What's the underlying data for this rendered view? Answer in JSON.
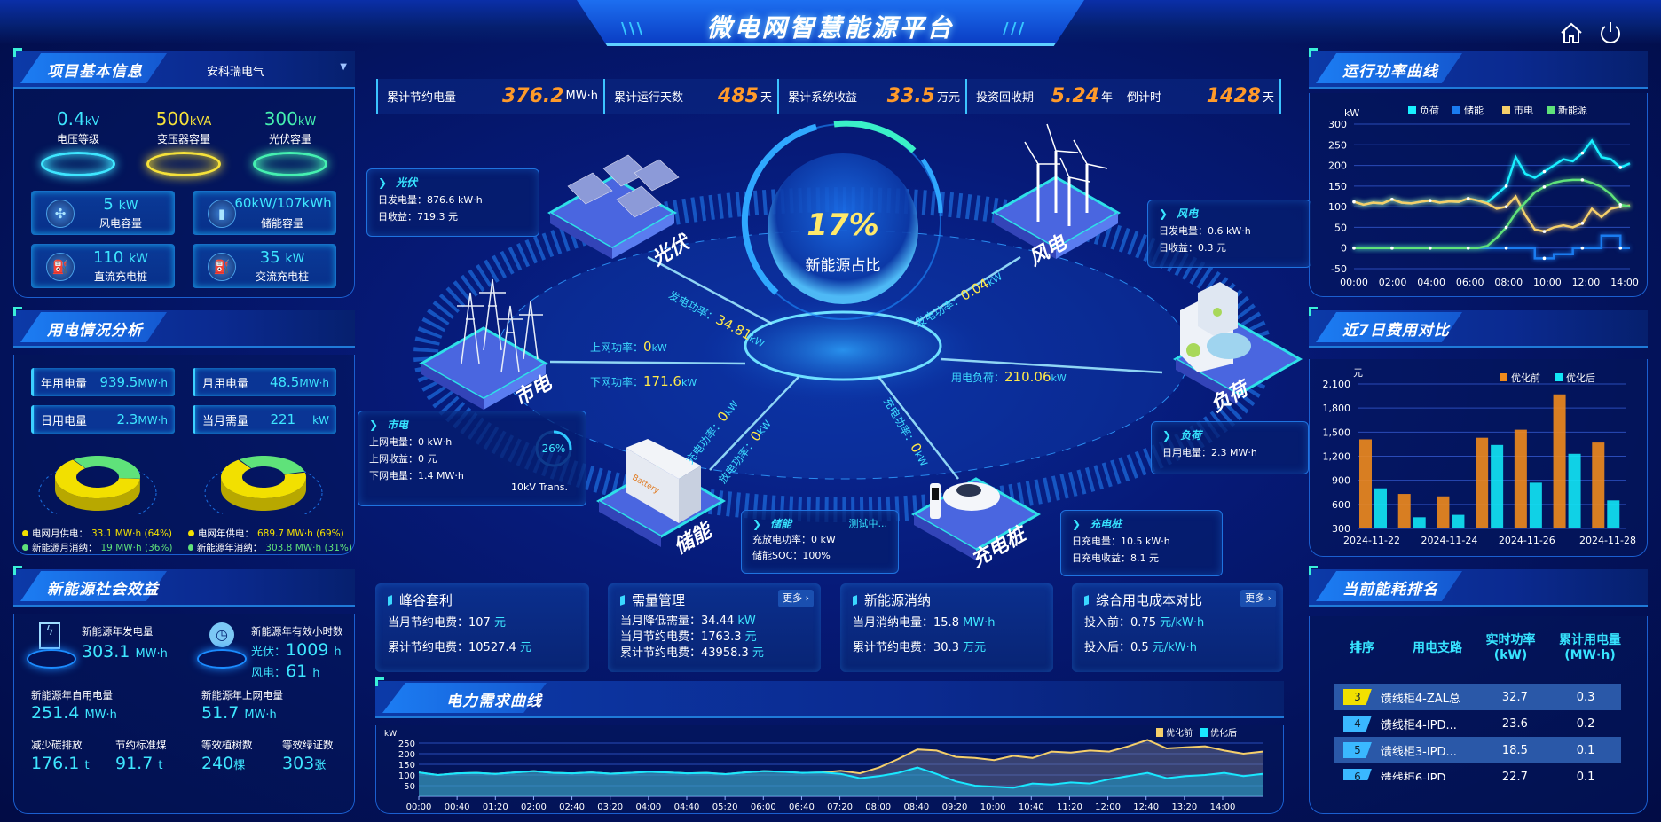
{
  "header": {
    "title": "微电网智慧能源平台",
    "icons": [
      "home-icon",
      "power-icon"
    ]
  },
  "stats": [
    {
      "label": "累计节约电量",
      "value": "376.2",
      "unit": "MW·h"
    },
    {
      "label": "累计运行天数",
      "value": "485",
      "unit": "天"
    },
    {
      "label": "累计系统收益",
      "value": "33.5",
      "unit": "万元"
    },
    {
      "label": "投资回收期",
      "value": "5.24",
      "unit": "年"
    },
    {
      "label": "倒计时",
      "value": "1428",
      "unit": "天"
    }
  ],
  "project": {
    "title": "项目基本信息",
    "company": "安科瑞电气",
    "cones": [
      {
        "value": "0.4",
        "unit": "kV",
        "label": "电压等级",
        "color": "#3ee6ff"
      },
      {
        "value": "500",
        "unit": "kVA",
        "label": "变压器容量",
        "color": "#f5e13a"
      },
      {
        "value": "300",
        "unit": "kW",
        "label": "光伏容量",
        "color": "#45f0b0"
      }
    ],
    "cards": [
      {
        "value": "5",
        "unit": "kW",
        "label": "风电容量",
        "icon": "wind-turbine-icon"
      },
      {
        "value": "60kW/107kWh",
        "unit": "",
        "label": "储能容量",
        "icon": "battery-icon"
      },
      {
        "value": "110",
        "unit": "kW",
        "label": "直流充电桩",
        "icon": "charger-icon"
      },
      {
        "value": "35",
        "unit": "kW",
        "label": "交流充电桩",
        "icon": "charger-icon"
      }
    ]
  },
  "usage": {
    "title": "用电情况分析",
    "boxes": [
      {
        "label": "年用电量",
        "value": "939.5",
        "unit": "MW·h"
      },
      {
        "label": "月用电量",
        "value": "48.5",
        "unit": "MW·h"
      },
      {
        "label": "日用电量",
        "value": "2.3",
        "unit": "MW·h"
      },
      {
        "label": "当月需量",
        "value": "221",
        "unit": "kW"
      }
    ],
    "donuts": [
      {
        "grid_pct": 64,
        "new_pct": 36,
        "grid_label": "电网月供电：",
        "grid_value": "33.1 MW·h (64%)",
        "new_label": "新能源月消纳：",
        "new_value": "19 MW·h (36%)"
      },
      {
        "grid_pct": 69,
        "new_pct": 31,
        "grid_label": "电网年供电：",
        "grid_value": "689.7 MW·h (69%)",
        "new_label": "新能源年消纳：",
        "new_value": "303.8 MW·h (31%)"
      }
    ],
    "colors": {
      "grid": "#f2e000",
      "new": "#5fe27a"
    }
  },
  "social": {
    "title": "新能源社会效益",
    "annual_gen_label": "新能源年发电量",
    "annual_gen_value": "303.1",
    "annual_gen_unit": "MW·h",
    "hours_label": "新能源年有效小时数",
    "pv_label": "光伏：",
    "pv_value": "1009",
    "pv_unit": "h",
    "wind_label": "风电：",
    "wind_value": "61",
    "wind_unit": "h",
    "self_label": "新能源年自用电量",
    "self_value": "251.4",
    "self_unit": "MW·h",
    "grid_label": "新能源年上网电量",
    "grid_value": "51.7",
    "grid_unit": "MW·h",
    "carbon_label": "减少碳排放",
    "carbon_value": "176.1",
    "carbon_unit": "t",
    "coal_label": "节约标准煤",
    "coal_value": "91.7",
    "coal_unit": "t",
    "tree_label": "等效植树数",
    "tree_value": "240",
    "tree_unit": "棵",
    "cert_label": "等效绿证数",
    "cert_value": "303",
    "cert_unit": "张"
  },
  "center": {
    "ratio": "17%",
    "ratio_label": "新能源占比",
    "nodes": {
      "pv": "光伏",
      "wind": "风电",
      "grid": "市电",
      "load": "负荷",
      "storage": "储能",
      "charger": "充电桩"
    },
    "flows": {
      "pv": {
        "label": "发电功率：",
        "value": "34.81",
        "unit": "kW"
      },
      "wind": {
        "label": "发电功率：",
        "value": "0.04",
        "unit": "kW"
      },
      "grid_up": {
        "label": "上网功率：",
        "value": "0",
        "unit": "kW"
      },
      "grid_down": {
        "label": "下网功率：",
        "value": "171.6",
        "unit": "kW"
      },
      "load": {
        "label": "用电负荷：",
        "value": "210.06",
        "unit": "kW"
      },
      "st_charge": {
        "label": "充电功率：",
        "value": "0",
        "unit": "kW"
      },
      "st_discharge": {
        "label": "放电功率：",
        "value": "0",
        "unit": "kW"
      },
      "ev_charge": {
        "label": "充电功率：",
        "value": "0",
        "unit": "kW"
      }
    },
    "boxes": {
      "pv": {
        "title": "光伏",
        "lines": [
          "日发电量：876.6 kW·h",
          "日收益：719.3 元"
        ]
      },
      "wind": {
        "title": "风电",
        "lines": [
          "日发电量：0.6 kW·h",
          "日收益：0.3 元"
        ]
      },
      "grid": {
        "title": "市电",
        "lines": [
          "上网电量：0 kW·h",
          "上网收益：0 元",
          "下网电量：1.4 MW·h"
        ],
        "gauge": "26%",
        "gauge_pct": 26,
        "gauge_label": "10kV Trans."
      },
      "load": {
        "title": "负荷",
        "lines": [
          "日用电量：2.3 MW·h"
        ]
      },
      "storage": {
        "title": "储能",
        "status": "测试中...",
        "lines": [
          "充放电功率：0 kW",
          "储能SOC：100%"
        ]
      },
      "charger": {
        "title": "充电桩",
        "lines": [
          "日充电量：10.5 kW·h",
          "日充电收益：8.1 元"
        ]
      }
    },
    "battery_text": "Battery"
  },
  "cards": [
    {
      "title": "峰谷套利",
      "rows": [
        {
          "label": "当月节约电费：",
          "value": "107",
          "unit": "元"
        },
        {
          "label": "累计节约电费：",
          "value": "10527.4",
          "unit": "元"
        }
      ]
    },
    {
      "title": "需量管理",
      "more": "更多",
      "rows": [
        {
          "label": "当月降低需量：",
          "value": "34.44",
          "unit": "kW"
        },
        {
          "label": "当月节约电费：",
          "value": "1763.3",
          "unit": "元"
        },
        {
          "label": "累计节约电费：",
          "value": "43958.3",
          "unit": "元"
        }
      ]
    },
    {
      "title": "新能源消纳",
      "rows": [
        {
          "label": "当月消纳电量：",
          "value": "15.8",
          "unit": "MW·h"
        },
        {
          "label": "累计节约电费：",
          "value": "30.3",
          "unit": "万元"
        }
      ]
    },
    {
      "title": "综合用电成本对比",
      "more": "更多",
      "rows": [
        {
          "label": "投入前：",
          "value": "0.75",
          "unit": "元/kW·h"
        },
        {
          "label": "投入后：",
          "value": "0.5",
          "unit": "元/kW·h"
        }
      ]
    }
  ],
  "ranking": {
    "title": "当前能耗排名",
    "headers": [
      "排序",
      "用电支路",
      "实时功率\n(kW)",
      "累计用电量\n(MW·h)"
    ],
    "rows": [
      {
        "rank": "3",
        "name": "馈线柜4-ZAL总",
        "power": "32.7",
        "energy": "0.3",
        "color": "#f2e000"
      },
      {
        "rank": "4",
        "name": "馈线柜4-IPD...",
        "power": "23.6",
        "energy": "0.2",
        "color": "#3ab8ff"
      },
      {
        "rank": "5",
        "name": "馈线柜3-IPD...",
        "power": "18.5",
        "energy": "0.1",
        "color": "#3ab8ff"
      },
      {
        "rank": "6",
        "name": "馈线柜6-IPD",
        "power": "22.7",
        "energy": "0.1",
        "color": "#3ab8ff"
      }
    ]
  },
  "chart_data": [
    {
      "id": "power",
      "title": "运行功率曲线",
      "type": "line",
      "ylabel": "kW",
      "ylim": [
        -50,
        300
      ],
      "yticks": [
        -50,
        0,
        50,
        100,
        150,
        200,
        250,
        300
      ],
      "xticks": [
        "00:00",
        "02:00",
        "04:00",
        "06:00",
        "08:00",
        "10:00",
        "12:00",
        "14:00"
      ],
      "legend": "top",
      "grid": true,
      "x": [
        "00:00",
        "00:30",
        "01:00",
        "01:30",
        "02:00",
        "02:30",
        "03:00",
        "03:30",
        "04:00",
        "04:30",
        "05:00",
        "05:30",
        "06:00",
        "06:30",
        "07:00",
        "07:30",
        "08:00",
        "08:30",
        "09:00",
        "09:30",
        "10:00",
        "10:30",
        "11:00",
        "11:30",
        "12:00",
        "12:30",
        "13:00",
        "13:30",
        "14:00",
        "14:30"
      ],
      "series": [
        {
          "name": "负荷",
          "color": "#19f0ff",
          "values": [
            112,
            105,
            110,
            108,
            118,
            110,
            108,
            112,
            115,
            110,
            113,
            112,
            120,
            115,
            110,
            130,
            150,
            220,
            180,
            170,
            185,
            200,
            215,
            210,
            230,
            260,
            220,
            215,
            195,
            205
          ]
        },
        {
          "name": "储能",
          "color": "#1a7cf0",
          "values": [
            0,
            0,
            0,
            0,
            0,
            0,
            0,
            0,
            0,
            0,
            0,
            0,
            0,
            0,
            0,
            0,
            0,
            0,
            0,
            -25,
            -25,
            -15,
            -15,
            0,
            0,
            0,
            30,
            30,
            0,
            0
          ]
        },
        {
          "name": "市电",
          "color": "#f5cf6a",
          "values": [
            112,
            105,
            110,
            108,
            118,
            110,
            108,
            112,
            115,
            110,
            113,
            112,
            120,
            115,
            108,
            95,
            100,
            125,
            80,
            45,
            40,
            50,
            55,
            50,
            60,
            95,
            75,
            95,
            100,
            103
          ]
        },
        {
          "name": "新能源",
          "color": "#5fe27a",
          "values": [
            0,
            0,
            0,
            0,
            0,
            0,
            0,
            0,
            0,
            0,
            0,
            0,
            0,
            0,
            5,
            25,
            50,
            85,
            110,
            135,
            148,
            158,
            163,
            165,
            165,
            158,
            148,
            130,
            105,
            100
          ]
        }
      ]
    },
    {
      "id": "cost",
      "title": "近7日费用对比",
      "type": "bar",
      "ylabel": "元",
      "ylim": [
        300,
        2100
      ],
      "yticks": [
        300,
        600,
        900,
        1200,
        1500,
        1800,
        2100
      ],
      "legend": "top-right",
      "grid": true,
      "categories": [
        "2024-11-22",
        "2024-11-23",
        "2024-11-24",
        "2024-11-25",
        "2024-11-26",
        "2024-11-27",
        "2024-11-28"
      ],
      "xticks": [
        "2024-11-22",
        "2024-11-24",
        "2024-11-26",
        "2024-11-28"
      ],
      "series": [
        {
          "name": "优化前",
          "color": "#f08a1c",
          "values": [
            1410,
            730,
            700,
            1430,
            1530,
            1970,
            1370
          ]
        },
        {
          "name": "优化后",
          "color": "#12e6f5",
          "values": [
            800,
            440,
            470,
            1340,
            870,
            1230,
            650
          ]
        }
      ]
    },
    {
      "id": "demand",
      "title": "电力需求曲线",
      "type": "area",
      "ylabel": "kW",
      "ylim": [
        0,
        300
      ],
      "yticks": [
        50,
        100,
        150,
        200,
        250
      ],
      "legend": "top-right",
      "grid": true,
      "xticks": [
        "00:00",
        "00:40",
        "01:20",
        "02:00",
        "02:40",
        "03:20",
        "04:00",
        "04:40",
        "05:20",
        "06:00",
        "06:40",
        "07:20",
        "08:00",
        "08:40",
        "09:20",
        "10:00",
        "10:40",
        "11:20",
        "12:00",
        "12:40",
        "13:20",
        "14:00"
      ],
      "x": [
        "00:00",
        "00:20",
        "00:40",
        "01:00",
        "01:20",
        "01:40",
        "02:00",
        "02:20",
        "02:40",
        "03:00",
        "03:20",
        "03:40",
        "04:00",
        "04:20",
        "04:40",
        "05:00",
        "05:20",
        "05:40",
        "06:00",
        "06:20",
        "06:40",
        "07:00",
        "07:20",
        "07:40",
        "08:00",
        "08:20",
        "08:40",
        "09:00",
        "09:20",
        "09:40",
        "10:00",
        "10:20",
        "10:40",
        "11:00",
        "11:20",
        "11:40",
        "12:00",
        "12:20",
        "12:40",
        "13:00",
        "13:20",
        "13:40",
        "14:00",
        "14:20",
        "14:40"
      ],
      "series": [
        {
          "name": "优化前",
          "color": "#f5cf6a",
          "values": [
            112,
            100,
            108,
            110,
            105,
            112,
            118,
            110,
            108,
            112,
            106,
            110,
            115,
            112,
            108,
            110,
            104,
            112,
            118,
            115,
            110,
            112,
            120,
            108,
            135,
            175,
            220,
            215,
            185,
            180,
            170,
            190,
            180,
            210,
            205,
            215,
            210,
            235,
            265,
            225,
            230,
            235,
            215,
            200,
            210
          ]
        },
        {
          "name": "优化后",
          "color": "#19e8ff",
          "values": [
            112,
            100,
            108,
            110,
            105,
            112,
            118,
            110,
            108,
            112,
            106,
            110,
            115,
            112,
            108,
            110,
            104,
            112,
            118,
            115,
            110,
            112,
            105,
            85,
            95,
            110,
            135,
            105,
            70,
            50,
            45,
            40,
            60,
            55,
            65,
            60,
            80,
            95,
            110,
            85,
            95,
            100,
            110,
            95,
            105
          ]
        }
      ]
    }
  ]
}
